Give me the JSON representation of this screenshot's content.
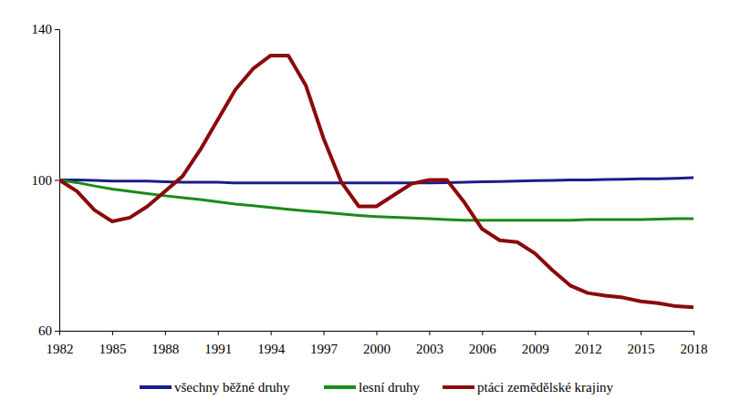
{
  "chart_data": {
    "type": "line",
    "x": [
      1982,
      1983,
      1984,
      1985,
      1986,
      1987,
      1988,
      1989,
      1990,
      1991,
      1992,
      1993,
      1994,
      1995,
      1996,
      1997,
      1998,
      1999,
      2000,
      2001,
      2002,
      2003,
      2004,
      2005,
      2006,
      2007,
      2008,
      2009,
      2010,
      2011,
      2012,
      2013,
      2014,
      2015,
      2016,
      2017,
      2018
    ],
    "xlim": [
      1982,
      2018
    ],
    "xticks": [
      1982,
      1985,
      1988,
      1991,
      1994,
      1997,
      2000,
      2003,
      2006,
      2009,
      2012,
      2015,
      2018
    ],
    "ylim": [
      60,
      140
    ],
    "yticks": [
      60,
      100,
      140
    ],
    "grid": false,
    "legend": "bottom",
    "series": [
      {
        "name": "všechny běžné druhy",
        "color": "#1c1c8c",
        "values": [
          100,
          100,
          99.9,
          99.7,
          99.7,
          99.7,
          99.5,
          99.4,
          99.4,
          99.4,
          99.2,
          99.2,
          99.2,
          99.2,
          99.2,
          99.2,
          99.2,
          99.2,
          99.2,
          99.2,
          99.2,
          99.2,
          99.3,
          99.4,
          99.5,
          99.6,
          99.7,
          99.8,
          99.9,
          100,
          100,
          100.1,
          100.2,
          100.3,
          100.3,
          100.4,
          100.6
        ]
      },
      {
        "name": "lesní druhy",
        "color": "#1a8a1a",
        "values": [
          100,
          99.3,
          98.4,
          97.6,
          97,
          96.4,
          95.8,
          95.3,
          94.8,
          94.2,
          93.6,
          93.2,
          92.7,
          92.2,
          91.8,
          91.4,
          91,
          90.6,
          90.3,
          90.1,
          89.9,
          89.7,
          89.5,
          89.3,
          89.3,
          89.3,
          89.3,
          89.3,
          89.3,
          89.3,
          89.5,
          89.5,
          89.5,
          89.5,
          89.6,
          89.7,
          89.7
        ]
      },
      {
        "name": "ptáci zemědělské krajiny",
        "color": "#8b0a0a",
        "values": [
          100,
          97,
          92,
          89,
          90,
          93,
          97,
          101,
          108,
          116,
          124,
          129.5,
          133,
          133,
          125,
          111,
          99.5,
          93,
          93,
          96,
          99,
          100,
          100,
          94,
          87,
          84,
          83.5,
          80.5,
          76,
          72,
          70,
          69.3,
          68.8,
          67.8,
          67.3,
          66.5,
          66.2
        ]
      }
    ]
  }
}
